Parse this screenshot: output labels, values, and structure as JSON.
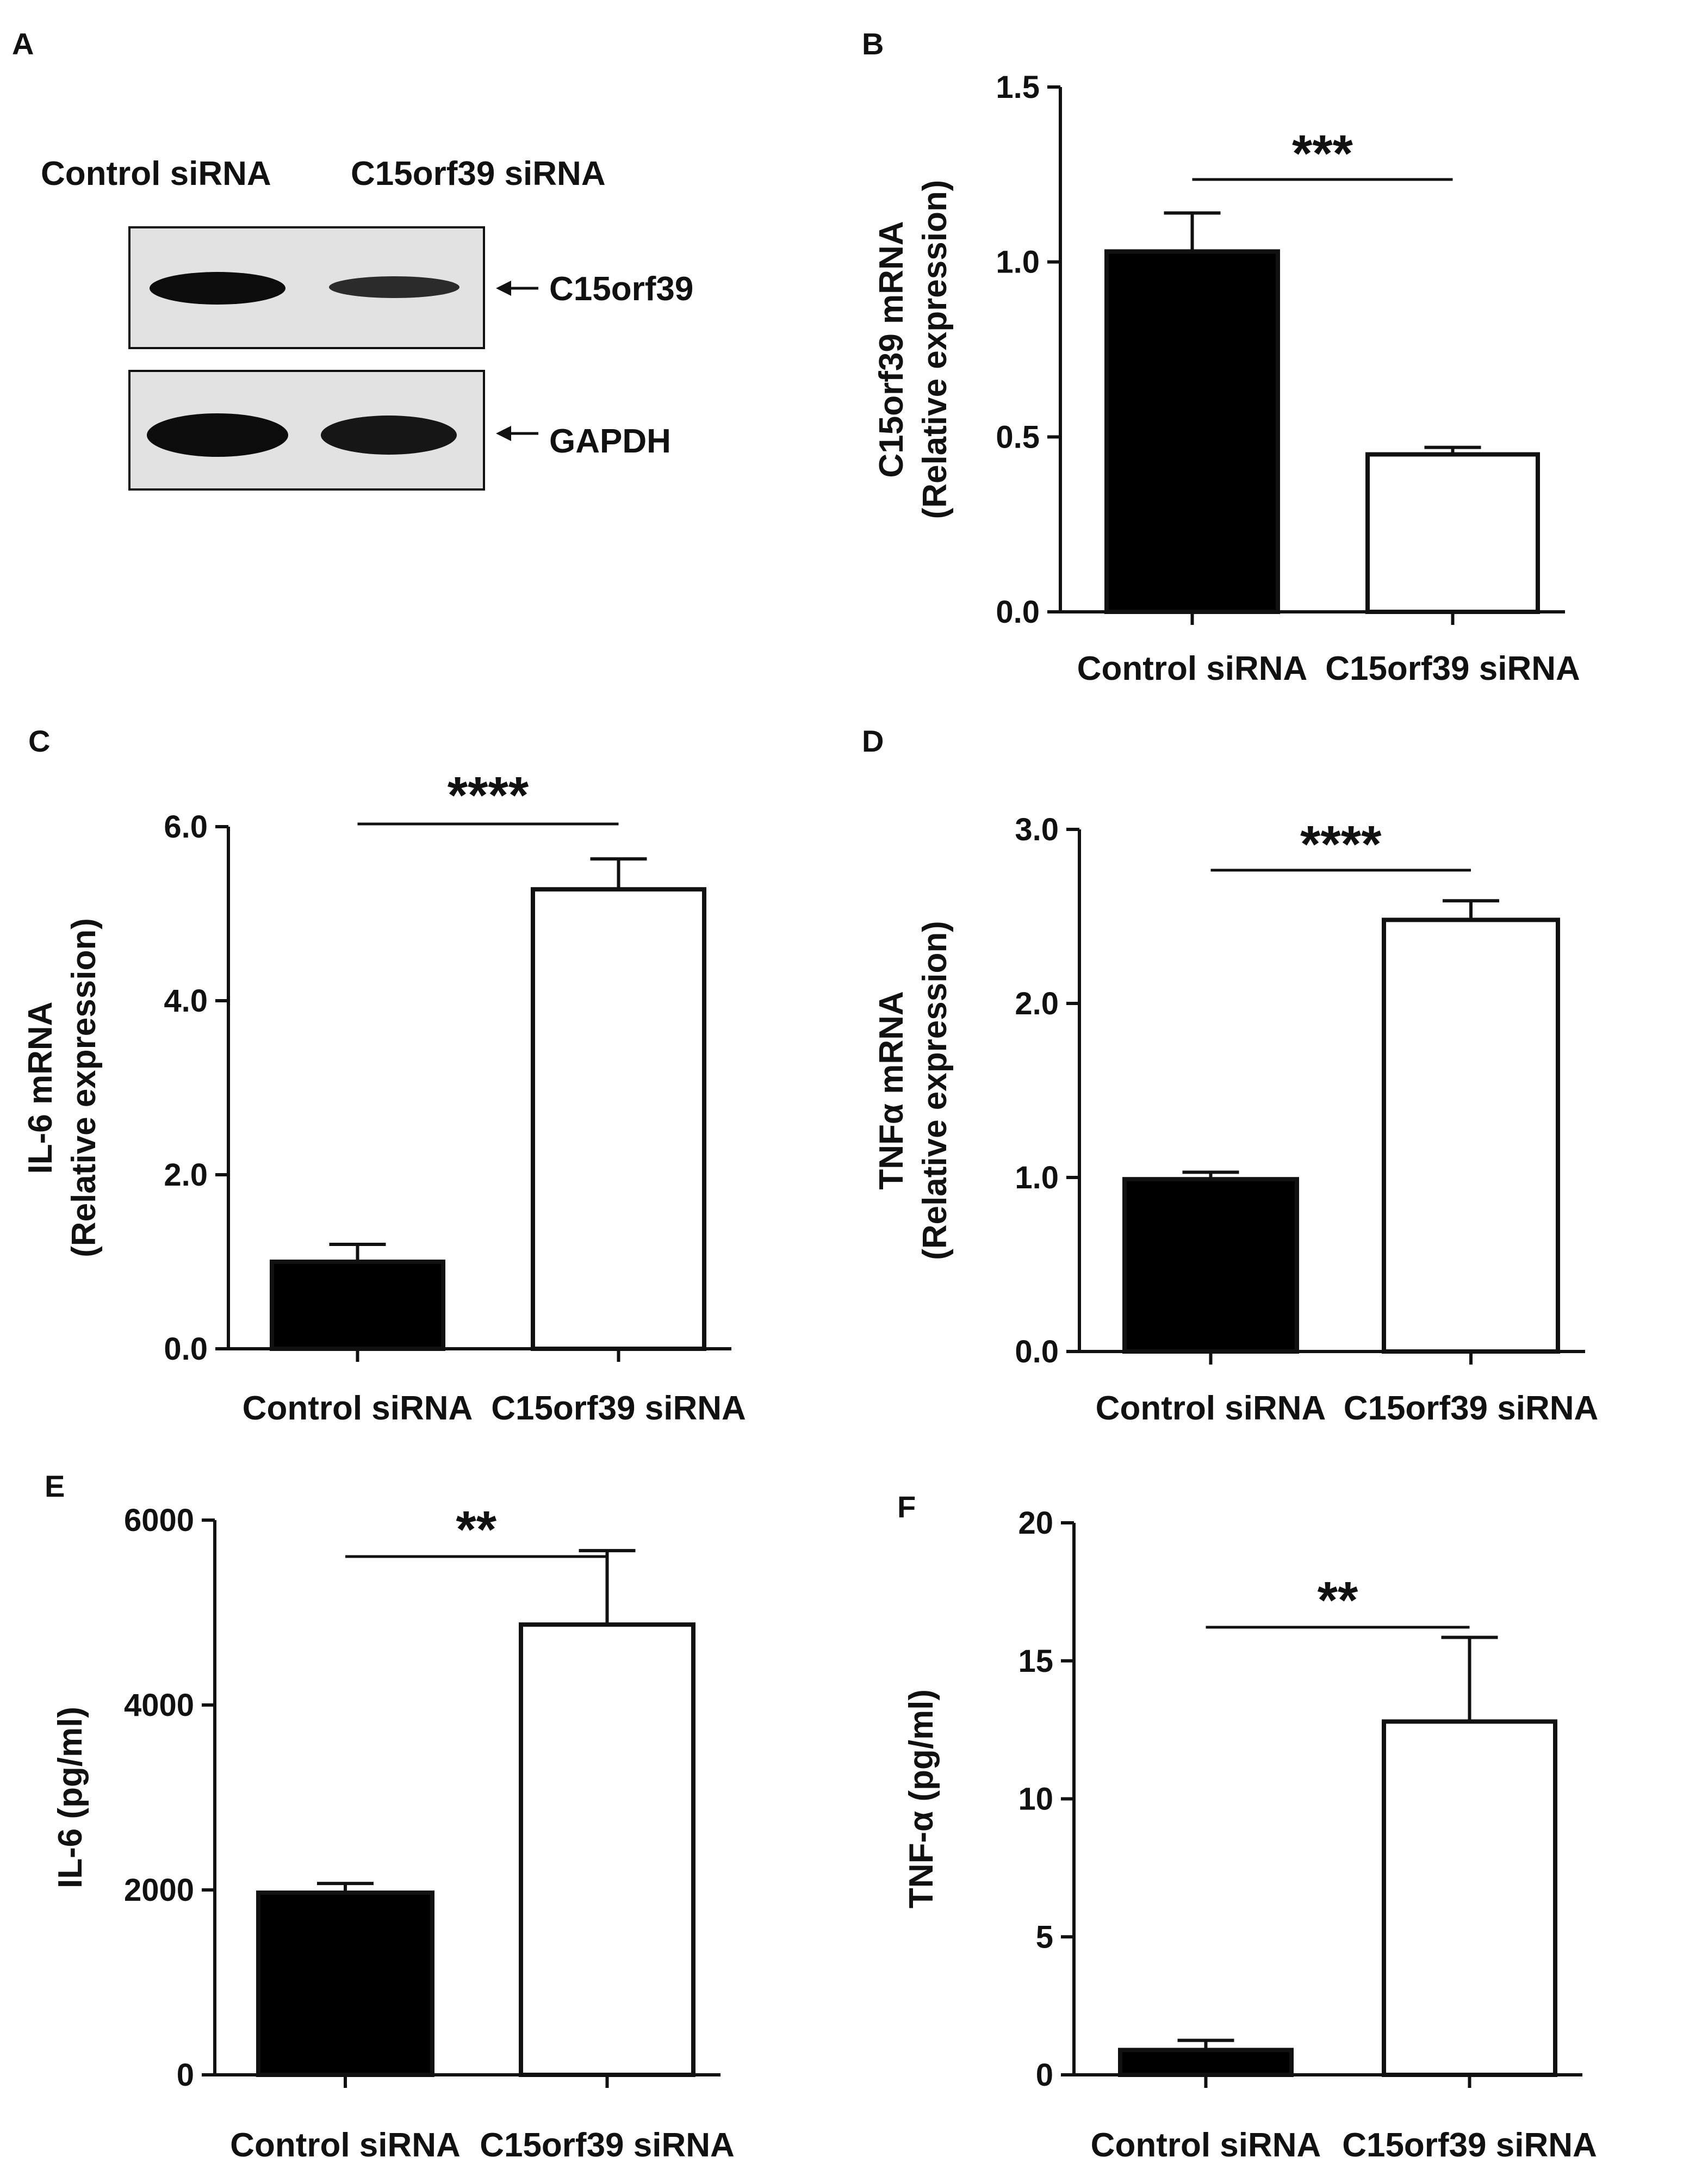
{
  "panel_a": {
    "letter": "A",
    "lane_labels": [
      "Control siRNA",
      "C15orf39 siRNA"
    ],
    "blots": [
      {
        "label": "C15orf39",
        "band_intensity": [
          1.0,
          0.55
        ]
      },
      {
        "label": "GAPDH",
        "band_intensity": [
          1.0,
          0.9
        ]
      }
    ]
  },
  "chart_data": [
    {
      "panel": "B",
      "type": "bar",
      "categories": [
        "Control siRNA",
        "C15orf39 siRNA"
      ],
      "values": [
        1.03,
        0.45
      ],
      "errors": [
        0.11,
        0.02
      ],
      "ylabel_lines": [
        "C15orf39 mRNA",
        "(Relative expression)"
      ],
      "ylim": [
        0,
        1.5
      ],
      "yticks": [
        0.0,
        0.5,
        1.0,
        1.5
      ],
      "tick_labels": [
        "0.0",
        "0.5",
        "1.0",
        "1.5"
      ],
      "significance": "***",
      "bar_fills": [
        "#000000",
        "#ffffff"
      ]
    },
    {
      "panel": "C",
      "type": "bar",
      "categories": [
        "Control siRNA",
        "C15orf39 siRNA"
      ],
      "values": [
        1.0,
        5.28
      ],
      "errors": [
        0.2,
        0.35
      ],
      "ylabel_lines": [
        "IL-6 mRNA",
        "(Relative expression)"
      ],
      "ylim": [
        0,
        6.0
      ],
      "yticks": [
        0.0,
        2.0,
        4.0,
        6.0
      ],
      "tick_labels": [
        "0.0",
        "2.0",
        "4.0",
        "6.0"
      ],
      "significance": "****",
      "bar_fills": [
        "#000000",
        "#ffffff"
      ]
    },
    {
      "panel": "D",
      "type": "bar",
      "categories": [
        "Control siRNA",
        "C15orf39 siRNA"
      ],
      "values": [
        0.99,
        2.48
      ],
      "errors": [
        0.04,
        0.11
      ],
      "ylabel_lines": [
        "TNFα mRNA",
        "(Relative expression)"
      ],
      "ylim": [
        0,
        3.0
      ],
      "yticks": [
        0.0,
        1.0,
        2.0,
        3.0
      ],
      "tick_labels": [
        "0.0",
        "1.0",
        "2.0",
        "3.0"
      ],
      "significance": "****",
      "bar_fills": [
        "#000000",
        "#ffffff"
      ]
    },
    {
      "panel": "E",
      "type": "bar",
      "categories": [
        "Control siRNA",
        "C15orf39 siRNA"
      ],
      "values": [
        1970,
        4870
      ],
      "errors": [
        100,
        800
      ],
      "ylabel_lines": [
        "IL-6 (pg/ml)"
      ],
      "ylim": [
        0,
        6000
      ],
      "yticks": [
        0,
        2000,
        4000,
        6000
      ],
      "tick_labels": [
        "0",
        "2000",
        "4000",
        "6000"
      ],
      "significance": "**",
      "bar_fills": [
        "#000000",
        "#ffffff"
      ]
    },
    {
      "panel": "F",
      "type": "bar",
      "categories": [
        "Control siRNA",
        "C15orf39 siRNA"
      ],
      "values": [
        0.9,
        12.8
      ],
      "errors": [
        0.35,
        3.05
      ],
      "ylabel_lines": [
        "TNF-α (pg/ml)"
      ],
      "ylim": [
        0,
        20
      ],
      "yticks": [
        0,
        5,
        10,
        15,
        20
      ],
      "tick_labels": [
        "0",
        "5",
        "10",
        "15",
        "20"
      ],
      "significance": "**",
      "bar_fills": [
        "#000000",
        "#ffffff"
      ]
    }
  ]
}
